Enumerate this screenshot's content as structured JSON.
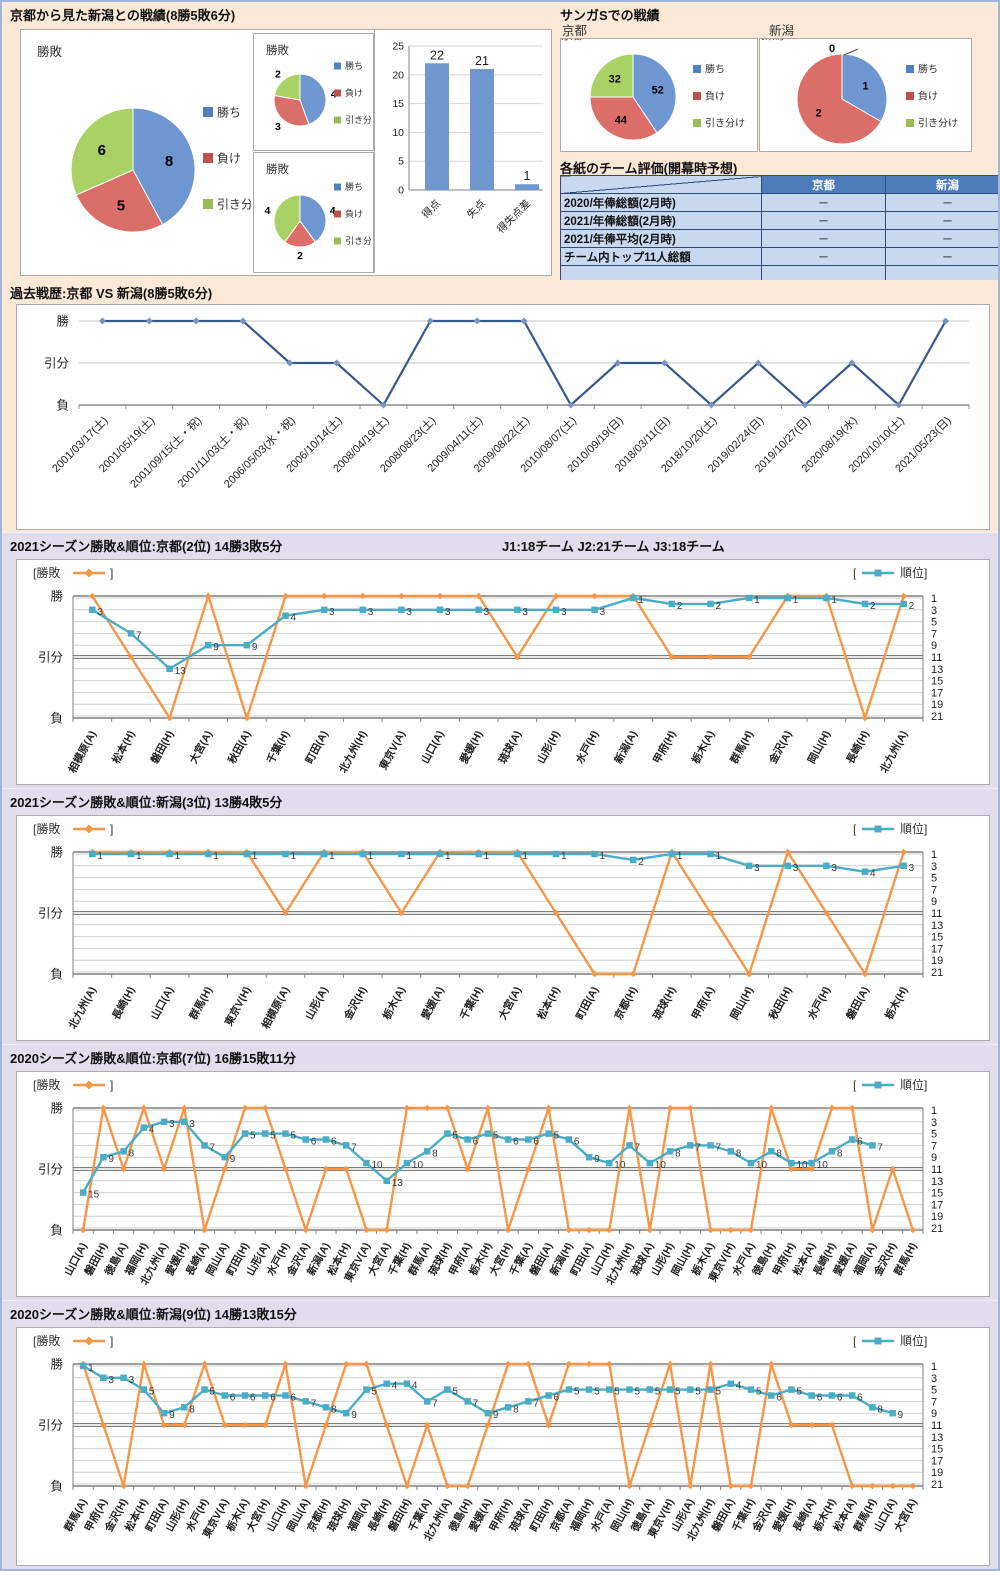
{
  "sections": {
    "head_to_head_title": "京都から見た新潟との戦績(8勝5敗6分)",
    "sanga_title": "サンガSでの戦績",
    "sanga_kyoto_label": "京都",
    "sanga_niigata_label": "新潟",
    "table_title": "各紙のチーム評価(開幕時予想)",
    "history_title": "過去戦歴:京都 VS 新潟(8勝5敗6分)",
    "season_2021_kyoto_title": "2021シーズン勝敗&順位:京都(2位) 14勝3敗5分",
    "season_2021_note": "J1:18チーム  J2:21チーム  J3:18チーム",
    "season_2021_niigata_title": "2021シーズン勝敗&順位:新潟(3位) 13勝4敗5分",
    "season_2020_kyoto_title": "2020シーズン勝敗&順位:京都(7位) 16勝15敗11分",
    "season_2020_niigata_title": "2020シーズン勝敗&順位:新潟(9位) 14勝13敗15分"
  },
  "colors": {
    "bg_peach": "#FBE8D6",
    "bg_lavender": "#E2DDEC",
    "orange": "#F79646",
    "teal": "#4BACC6",
    "navy": "#36598E",
    "pie_fills": [
      "#6E96D0",
      "#DC6E6A",
      "#AAD165"
    ],
    "legend_fills": [
      "#4F81BD",
      "#C0504D",
      "#9BBB59"
    ],
    "bar_fill": "#6F97CF",
    "table_header_bg": "#4D7CBB",
    "table_row_bg": "#C8D8EF"
  },
  "pie_legend": [
    "勝ち",
    "負け",
    "引き分け"
  ],
  "result_levels": [
    "勝",
    "引分",
    "負"
  ],
  "table": {
    "headers": [
      "",
      "京都",
      "新潟"
    ],
    "rows": [
      [
        "2020/年俸総額(2月時)",
        "－",
        "－"
      ],
      [
        "2021/年俸総額(2月時)",
        "－",
        "－"
      ],
      [
        "2021/年俸平均(2月時)",
        "－",
        "－"
      ],
      [
        "チーム内トップ11人総額",
        "－",
        "－"
      ],
      [
        "",
        "",
        ""
      ]
    ]
  },
  "chart_data": [
    {
      "id": "pie-main",
      "type": "pie",
      "title": "勝敗",
      "labels": [
        "勝ち",
        "負け",
        "引き分け"
      ],
      "values": [
        8,
        5,
        6
      ],
      "legend_position": "right"
    },
    {
      "id": "pie-sub1",
      "type": "pie",
      "title": "勝敗",
      "labels": [
        "勝ち",
        "負け",
        "引き分け"
      ],
      "values": [
        4,
        3,
        2
      ],
      "legend_position": "right"
    },
    {
      "id": "pie-sub2",
      "type": "pie",
      "title": "勝敗",
      "labels": [
        "勝ち",
        "負け",
        "引き分け"
      ],
      "values": [
        4,
        2,
        4
      ],
      "legend_position": "right"
    },
    {
      "id": "bar-goals",
      "type": "bar",
      "categories": [
        "得点",
        "失点",
        "得失点差"
      ],
      "values": [
        22,
        21,
        1
      ],
      "ylim": [
        0,
        25
      ],
      "ytick": 5
    },
    {
      "id": "pie-kyoto",
      "type": "pie",
      "title": "京都",
      "labels": [
        "勝ち",
        "負け",
        "引き分け"
      ],
      "values": [
        52,
        44,
        32
      ],
      "legend_position": "right"
    },
    {
      "id": "pie-niigata",
      "type": "pie",
      "title": "新潟",
      "labels": [
        "勝ち",
        "負け",
        "引き分け"
      ],
      "values": [
        1,
        2,
        0
      ],
      "legend_position": "right"
    },
    {
      "id": "history",
      "type": "line",
      "title": "過去戦歴:京都 VS 新潟(8勝5敗6分)",
      "y_levels": [
        "勝",
        "引分",
        "負"
      ],
      "x": [
        "2001/03/17(土)",
        "2001/05/19(土)",
        "2001/09/15(土・祝)",
        "2001/11/03(土・祝)",
        "2006/05/03(水・祝)",
        "2006/10/14(土)",
        "2008/04/19(土)",
        "2008/08/23(土)",
        "2009/04/11(土)",
        "2009/08/22(土)",
        "2010/08/07(土)",
        "2010/09/19(日)",
        "2018/03/11(日)",
        "2018/10/20(土)",
        "2019/02/24(日)",
        "2019/10/27(日)",
        "2020/08/19(水)",
        "2020/10/10(土)",
        "2021/05/23(日)"
      ],
      "results": [
        "勝",
        "勝",
        "勝",
        "勝",
        "引分",
        "引分",
        "負",
        "勝",
        "勝",
        "勝",
        "負",
        "引分",
        "引分",
        "負",
        "引分",
        "負",
        "引分",
        "負",
        "勝"
      ]
    },
    {
      "id": "season-2021-kyoto",
      "type": "dual-line",
      "title": "2021シーズン勝敗&順位:京都(2位) 14勝3敗5分",
      "legend_left": "勝敗",
      "legend_right": "順位",
      "y_levels": [
        "勝",
        "引分",
        "負"
      ],
      "rank_axis": [
        1,
        21
      ],
      "categories": [
        "相模原(A)",
        "松本(H)",
        "磐田(H)",
        "大宮(A)",
        "秋田(A)",
        "千葉(H)",
        "町田(A)",
        "北九州(H)",
        "東京V(A)",
        "山口(A)",
        "愛媛(H)",
        "琉球(A)",
        "山形(H)",
        "水戸(H)",
        "新潟(A)",
        "甲府(H)",
        "栃木(A)",
        "群馬(H)",
        "金沢(A)",
        "岡山(H)",
        "長崎(H)",
        "北九州(A)"
      ],
      "results": [
        "勝",
        "引分",
        "負",
        "勝",
        "負",
        "勝",
        "勝",
        "勝",
        "勝",
        "勝",
        "勝",
        "引分",
        "勝",
        "勝",
        "勝",
        "引分",
        "引分",
        "引分",
        "勝",
        "勝",
        "負",
        "勝"
      ],
      "ranks": [
        3,
        7,
        13,
        9,
        9,
        4,
        3,
        3,
        3,
        3,
        3,
        3,
        3,
        3,
        1,
        2,
        2,
        1,
        1,
        1,
        2,
        2
      ]
    },
    {
      "id": "season-2021-niigata",
      "type": "dual-line",
      "title": "2021シーズン勝敗&順位:新潟(3位) 13勝4敗5分",
      "legend_left": "勝敗",
      "legend_right": "順位",
      "y_levels": [
        "勝",
        "引分",
        "負"
      ],
      "rank_axis": [
        1,
        21
      ],
      "categories": [
        "北九州(A)",
        "長崎(H)",
        "山口(A)",
        "群馬(H)",
        "東京V(H)",
        "相模原(A)",
        "山形(A)",
        "金沢(H)",
        "栃木(A)",
        "愛媛(A)",
        "千葉(H)",
        "大宮(A)",
        "松本(H)",
        "町田(A)",
        "京都(H)",
        "琉球(H)",
        "甲府(A)",
        "岡山(H)",
        "秋田(H)",
        "水戸(H)",
        "磐田(A)",
        "栃木(H)"
      ],
      "results": [
        "勝",
        "勝",
        "勝",
        "勝",
        "勝",
        "引分",
        "勝",
        "勝",
        "引分",
        "勝",
        "勝",
        "勝",
        "引分",
        "負",
        "負",
        "勝",
        "引分",
        "負",
        "勝",
        "引分",
        "負",
        "勝"
      ],
      "ranks": [
        1,
        1,
        1,
        1,
        1,
        1,
        1,
        1,
        1,
        1,
        1,
        1,
        1,
        1,
        2,
        1,
        1,
        3,
        3,
        3,
        4,
        3
      ]
    },
    {
      "id": "season-2020-kyoto",
      "type": "dual-line",
      "title": "2020シーズン勝敗&順位:京都(7位) 16勝15敗11分",
      "legend_left": "勝敗",
      "legend_right": "順位",
      "y_levels": [
        "勝",
        "引分",
        "負"
      ],
      "rank_axis": [
        1,
        21
      ],
      "categories": [
        "山口(A)",
        "磐田(H)",
        "徳島(A)",
        "福岡(H)",
        "北九州(A)",
        "愛媛(H)",
        "長崎(A)",
        "岡山(A)",
        "町田(H)",
        "山形(A)",
        "水戸(H)",
        "金沢(A)",
        "新潟(A)",
        "松本(H)",
        "東京V(A)",
        "大宮(A)",
        "千葉(H)",
        "群馬(A)",
        "琉球(H)",
        "甲府(A)",
        "栃木(H)",
        "大宮(H)",
        "千葉(A)",
        "磐田(A)",
        "新潟(H)",
        "町田(A)",
        "山口(H)",
        "北九州(H)",
        "琉球(A)",
        "山形(H)",
        "岡山(H)",
        "栃木(A)",
        "東京V(H)",
        "水戸(A)",
        "徳島(H)",
        "甲府(H)",
        "松本(A)",
        "長崎(H)",
        "愛媛(A)",
        "福岡(A)",
        "金沢(H)",
        "群馬(H)"
      ],
      "results": [
        "負",
        "勝",
        "引分",
        "勝",
        "引分",
        "勝",
        "負",
        "引分",
        "勝",
        "勝",
        "引分",
        "負",
        "引分",
        "引分",
        "負",
        "負",
        "勝",
        "勝",
        "勝",
        "引分",
        "勝",
        "負",
        "引分",
        "勝",
        "負",
        "負",
        "負",
        "勝",
        "負",
        "勝",
        "勝",
        "負",
        "負",
        "負",
        "勝",
        "引分",
        "引分",
        "勝",
        "勝",
        "負",
        "引分",
        "負"
      ],
      "ranks": [
        15,
        9,
        8,
        4,
        3,
        3,
        7,
        9,
        5,
        5,
        5,
        6,
        6,
        7,
        10,
        13,
        10,
        8,
        5,
        6,
        5,
        6,
        6,
        5,
        6,
        9,
        10,
        7,
        10,
        8,
        7,
        7,
        8,
        10,
        8,
        10,
        10,
        8,
        6,
        7,
        null,
        null
      ]
    },
    {
      "id": "season-2020-niigata",
      "type": "dual-line",
      "title": "2020シーズン勝敗&順位:新潟(9位) 14勝13敗15分",
      "legend_left": "勝敗",
      "legend_right": "順位",
      "y_levels": [
        "勝",
        "引分",
        "負"
      ],
      "rank_axis": [
        1,
        21
      ],
      "categories": [
        "群馬(A)",
        "甲府(A)",
        "金沢(H)",
        "松本(H)",
        "町田(A)",
        "山形(H)",
        "水戸(H)",
        "東京V(A)",
        "栃木(A)",
        "大宮(H)",
        "山口(H)",
        "岡山(A)",
        "京都(H)",
        "琉球(H)",
        "福岡(A)",
        "長崎(H)",
        "磐田(H)",
        "千葉(A)",
        "北九州(A)",
        "徳島(H)",
        "愛媛(A)",
        "甲府(H)",
        "琉球(A)",
        "町田(H)",
        "京都(A)",
        "福岡(H)",
        "水戸(A)",
        "岡山(H)",
        "徳島(A)",
        "東京V(H)",
        "山形(A)",
        "北九州(H)",
        "磐田(A)",
        "千葉(H)",
        "金沢(A)",
        "愛媛(H)",
        "長崎(A)",
        "栃木(H)",
        "松本(A)",
        "群馬(H)",
        "山口(A)",
        "大宮(A)"
      ],
      "results": [
        "勝",
        "引分",
        "負",
        "勝",
        "引分",
        "引分",
        "勝",
        "引分",
        "引分",
        "引分",
        "勝",
        "負",
        "引分",
        "勝",
        "勝",
        "引分",
        "負",
        "引分",
        "負",
        "負",
        "引分",
        "勝",
        "勝",
        "引分",
        "勝",
        "勝",
        "勝",
        "負",
        "引分",
        "勝",
        "負",
        "勝",
        "負",
        "負",
        "勝",
        "引分",
        "引分",
        "引分",
        "負",
        "負",
        "負",
        "負"
      ],
      "ranks": [
        1,
        3,
        3,
        5,
        9,
        8,
        5,
        6,
        6,
        6,
        6,
        7,
        8,
        9,
        5,
        4,
        4,
        7,
        5,
        7,
        9,
        8,
        7,
        6,
        5,
        5,
        5,
        5,
        5,
        5,
        5,
        5,
        4,
        5,
        6,
        5,
        6,
        6,
        6,
        8,
        9,
        null
      ]
    }
  ]
}
